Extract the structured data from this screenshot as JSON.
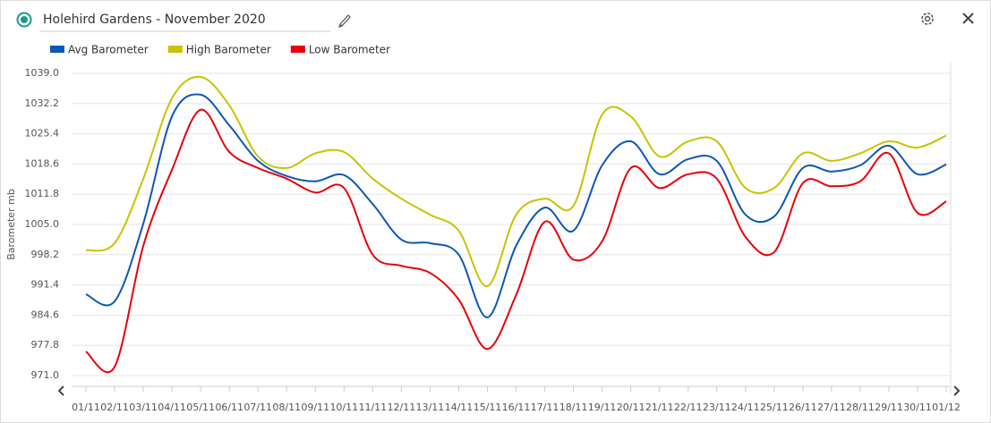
{
  "chart_data": {
    "type": "line",
    "title": "Holehird Gardens - November 2020",
    "y_label": "Barometer mb",
    "categories": [
      "01/11",
      "02/11",
      "03/11",
      "04/11",
      "05/11",
      "06/11",
      "07/11",
      "08/11",
      "09/11",
      "10/11",
      "11/11",
      "12/11",
      "13/11",
      "14/11",
      "15/11",
      "16/11",
      "17/11",
      "18/11",
      "19/11",
      "20/11",
      "21/11",
      "22/11",
      "23/11",
      "24/11",
      "25/11",
      "26/11",
      "27/11",
      "28/11",
      "29/11",
      "30/11",
      "01/12"
    ],
    "series": [
      {
        "name": "Avg Barometer",
        "color": "#0b57b5",
        "values": [
          989.3,
          987.7,
          1005.2,
          1029.3,
          1034.2,
          1027.3,
          1019.3,
          1015.9,
          1014.7,
          1016.1,
          1009.6,
          1001.6,
          1000.8,
          998.2,
          984.1,
          1000.2,
          1008.8,
          1003.6,
          1018.3,
          1023.7,
          1016.3,
          1019.7,
          1019.3,
          1007.2,
          1006.8,
          1017.7,
          1016.9,
          1018.3,
          1022.7,
          1016.3,
          1018.5
        ]
      },
      {
        "name": "High Barometer",
        "color": "#c8c400",
        "values": [
          999.2,
          1000.8,
          1015.3,
          1033.4,
          1038.2,
          1031.8,
          1020.3,
          1017.7,
          1021.0,
          1021.3,
          1015.3,
          1010.8,
          1007.2,
          1003.6,
          991.1,
          1007.2,
          1010.8,
          1009.2,
          1029.7,
          1029.3,
          1020.3,
          1023.7,
          1023.7,
          1013.2,
          1013.2,
          1021.0,
          1019.3,
          1021.0,
          1023.7,
          1022.3,
          1025.0
        ]
      },
      {
        "name": "Low Barometer",
        "color": "#e8000b",
        "values": [
          976.4,
          973.0,
          1000.2,
          1017.3,
          1030.8,
          1021.3,
          1017.7,
          1015.3,
          1012.2,
          1013.2,
          998.2,
          995.7,
          994.1,
          988.1,
          977.0,
          989.1,
          1005.6,
          997.1,
          1001.2,
          1017.7,
          1013.2,
          1016.3,
          1015.3,
          1002.2,
          998.8,
          1014.3,
          1013.6,
          1014.7,
          1021.0,
          1007.6,
          1010.2
        ]
      }
    ],
    "ylim": [
      971.0,
      1039.0
    ],
    "yticks": [
      {
        "value": 971.0,
        "label": "971.0"
      },
      {
        "value": 977.8,
        "label": "977.8"
      },
      {
        "value": 984.6,
        "label": "984.6"
      },
      {
        "value": 991.4,
        "label": "991.4"
      },
      {
        "value": 998.2,
        "label": "998.2"
      },
      {
        "value": 1005.0,
        "label": "1005.0"
      },
      {
        "value": 1011.8,
        "label": "1011.8"
      },
      {
        "value": 1018.6,
        "label": "1018.6"
      },
      {
        "value": 1025.4,
        "label": "1025.4"
      },
      {
        "value": 1032.2,
        "label": "1032.2"
      },
      {
        "value": 1039.0,
        "label": "1039.0"
      }
    ],
    "grid": true
  }
}
